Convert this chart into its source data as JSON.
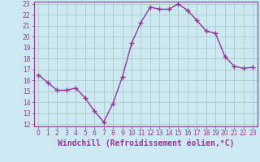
{
  "x": [
    0,
    1,
    2,
    3,
    4,
    5,
    6,
    7,
    8,
    9,
    10,
    11,
    12,
    13,
    14,
    15,
    16,
    17,
    18,
    19,
    20,
    21,
    22,
    23
  ],
  "y": [
    16.5,
    15.8,
    15.1,
    15.1,
    15.3,
    14.4,
    13.2,
    12.2,
    13.9,
    16.3,
    19.4,
    21.3,
    22.7,
    22.5,
    22.5,
    23.0,
    22.4,
    21.5,
    20.5,
    20.3,
    18.2,
    17.3,
    17.1,
    17.2
  ],
  "line_color": "#993399",
  "marker": "+",
  "marker_size": 4,
  "bg_color": "#cce8f0",
  "grid_color": "#aacccc",
  "xlabel": "Windchill (Refroidissement éolien,°C)",
  "xlabel_color": "#993399",
  "tick_color": "#993399",
  "spine_color": "#993399",
  "ylim": [
    12,
    23
  ],
  "xlim": [
    -0.5,
    23.5
  ],
  "yticks": [
    12,
    13,
    14,
    15,
    16,
    17,
    18,
    19,
    20,
    21,
    22,
    23
  ],
  "xticks": [
    0,
    1,
    2,
    3,
    4,
    5,
    6,
    7,
    8,
    9,
    10,
    11,
    12,
    13,
    14,
    15,
    16,
    17,
    18,
    19,
    20,
    21,
    22,
    23
  ],
  "tick_fontsize": 5.5,
  "xlabel_fontsize": 7.0,
  "linewidth": 1.0,
  "marker_linewidth": 1.0
}
